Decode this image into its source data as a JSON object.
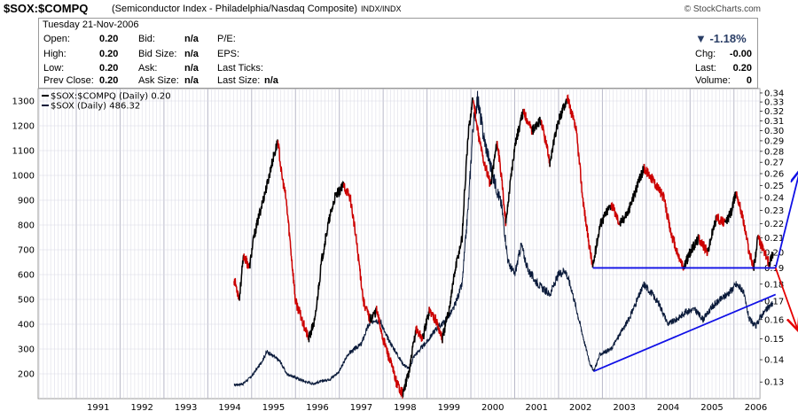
{
  "header": {
    "symbol": "$SOX:$COMPQ",
    "description": "(Semiconductor Index - Philadelphia/Nasdaq Composite)",
    "exchange": "INDX/INDX",
    "credit": "© StockCharts.com"
  },
  "quote": {
    "date": "Tuesday  21-Nov-2006",
    "open_label": "Open:",
    "open": "0.20",
    "high_label": "High:",
    "high": "0.20",
    "low_label": "Low:",
    "low": "0.20",
    "prev_close_label": "Prev Close:",
    "prev_close": "0.20",
    "bid_label": "Bid:",
    "bid": "n/a",
    "bid_size_label": "Bid Size:",
    "bid_size": "n/a",
    "ask_label": "Ask:",
    "ask": "n/a",
    "ask_size_label": "Ask Size:",
    "ask_size": "n/a",
    "pe_label": "P/E:",
    "eps_label": "EPS:",
    "last_ticks_label": "Last Ticks:",
    "last_size_label": "Last Size:",
    "last_size": "n/a",
    "change_pct": "▼ -1.18%",
    "chg_label": "Chg:",
    "chg": "-0.00",
    "last_label": "Last:",
    "last": "0.20",
    "volume_label": "Volume:",
    "volume": "0"
  },
  "colors": {
    "ratio_line": "#cc0000",
    "sox_line": "#0a1a3a",
    "ratio_legend": "#000000",
    "trendline": "#1010e6",
    "arrow_down": "#e60000",
    "grid": "#d7d7e3",
    "panel_bg": "#ffffff"
  },
  "chart_data": {
    "type": "line",
    "legend": [
      {
        "label": "$SOX:$COMPQ (Daily) 0.20",
        "color": "#000000"
      },
      {
        "label": "$SOX (Daily) 486.32",
        "color": "#0a1a3a"
      }
    ],
    "legend_position": "top-left",
    "grid": true,
    "x_tick_labels": [
      "1991",
      "1992",
      "1993",
      "1994",
      "1995",
      "1996",
      "1997",
      "1998",
      "1999",
      "2000",
      "2001",
      "2002",
      "2003",
      "2004",
      "2005",
      "2006"
    ],
    "left_axis": {
      "ticks": [
        200,
        300,
        400,
        500,
        600,
        700,
        800,
        900,
        1000,
        1100,
        1200,
        1300
      ],
      "range": [
        100,
        1350
      ]
    },
    "right_axis": {
      "ticks": [
        "0.13",
        "0.14",
        "0.15",
        "0.16",
        "0.17",
        "0.18",
        "0.19",
        "0.20",
        "0.21",
        "0.22",
        "0.23",
        "0.24",
        "0.25",
        "0.26",
        "0.27",
        "0.28",
        "0.29",
        "0.30",
        "0.31",
        "0.32",
        "0.33",
        "0.34"
      ],
      "scale": "log",
      "range": [
        0.123,
        0.345
      ]
    },
    "series": [
      {
        "name": "$SOX:$COMPQ (Daily) 0.20",
        "axis": "right",
        "color_segments": "black when rising, red when falling",
        "points": [
          [
            1994.6,
            0.183
          ],
          [
            1994.72,
            0.172
          ],
          [
            1994.82,
            0.198
          ],
          [
            1994.95,
            0.19
          ],
          [
            1995.05,
            0.21
          ],
          [
            1995.2,
            0.23
          ],
          [
            1995.35,
            0.25
          ],
          [
            1995.5,
            0.275
          ],
          [
            1995.6,
            0.29
          ],
          [
            1995.68,
            0.26
          ],
          [
            1995.78,
            0.24
          ],
          [
            1995.9,
            0.2
          ],
          [
            1996.0,
            0.17
          ],
          [
            1996.15,
            0.16
          ],
          [
            1996.3,
            0.15
          ],
          [
            1996.45,
            0.16
          ],
          [
            1996.6,
            0.195
          ],
          [
            1996.75,
            0.22
          ],
          [
            1996.9,
            0.24
          ],
          [
            1997.1,
            0.25
          ],
          [
            1997.25,
            0.24
          ],
          [
            1997.4,
            0.205
          ],
          [
            1997.55,
            0.17
          ],
          [
            1997.7,
            0.16
          ],
          [
            1997.85,
            0.165
          ],
          [
            1998.0,
            0.15
          ],
          [
            1998.15,
            0.14
          ],
          [
            1998.3,
            0.13
          ],
          [
            1998.45,
            0.125
          ],
          [
            1998.6,
            0.135
          ],
          [
            1998.75,
            0.155
          ],
          [
            1998.9,
            0.15
          ],
          [
            1999.05,
            0.165
          ],
          [
            1999.2,
            0.16
          ],
          [
            1999.35,
            0.15
          ],
          [
            1999.5,
            0.165
          ],
          [
            1999.65,
            0.19
          ],
          [
            1999.8,
            0.21
          ],
          [
            1999.95,
            0.3
          ],
          [
            2000.05,
            0.335
          ],
          [
            2000.15,
            0.3
          ],
          [
            2000.3,
            0.27
          ],
          [
            2000.45,
            0.25
          ],
          [
            2000.6,
            0.29
          ],
          [
            2000.8,
            0.22
          ],
          [
            2001.0,
            0.285
          ],
          [
            2001.2,
            0.32
          ],
          [
            2001.4,
            0.3
          ],
          [
            2001.6,
            0.31
          ],
          [
            2001.8,
            0.27
          ],
          [
            2002.0,
            0.31
          ],
          [
            2002.2,
            0.335
          ],
          [
            2002.4,
            0.3
          ],
          [
            2002.55,
            0.24
          ],
          [
            2002.65,
            0.215
          ],
          [
            2002.78,
            0.19
          ],
          [
            2002.95,
            0.22
          ],
          [
            2003.2,
            0.235
          ],
          [
            2003.4,
            0.22
          ],
          [
            2003.6,
            0.23
          ],
          [
            2003.8,
            0.25
          ],
          [
            2003.95,
            0.265
          ],
          [
            2004.15,
            0.255
          ],
          [
            2004.4,
            0.24
          ],
          [
            2004.55,
            0.215
          ],
          [
            2004.7,
            0.2
          ],
          [
            2004.85,
            0.19
          ],
          [
            2005.0,
            0.2
          ],
          [
            2005.2,
            0.21
          ],
          [
            2005.4,
            0.2
          ],
          [
            2005.6,
            0.225
          ],
          [
            2005.8,
            0.22
          ],
          [
            2005.95,
            0.23
          ],
          [
            2006.05,
            0.245
          ],
          [
            2006.2,
            0.225
          ],
          [
            2006.35,
            0.2
          ],
          [
            2006.45,
            0.19
          ],
          [
            2006.55,
            0.21
          ],
          [
            2006.7,
            0.2
          ],
          [
            2006.8,
            0.193
          ],
          [
            2006.89,
            0.2
          ]
        ]
      },
      {
        "name": "$SOX (Daily) 486.32",
        "axis": "left",
        "points": [
          [
            1994.6,
            155
          ],
          [
            1994.8,
            160
          ],
          [
            1995.0,
            190
          ],
          [
            1995.2,
            240
          ],
          [
            1995.35,
            290
          ],
          [
            1995.5,
            270
          ],
          [
            1995.65,
            250
          ],
          [
            1995.8,
            200
          ],
          [
            1996.0,
            185
          ],
          [
            1996.2,
            170
          ],
          [
            1996.4,
            160
          ],
          [
            1996.6,
            170
          ],
          [
            1996.8,
            180
          ],
          [
            1997.0,
            210
          ],
          [
            1997.2,
            280
          ],
          [
            1997.35,
            300
          ],
          [
            1997.5,
            320
          ],
          [
            1997.65,
            390
          ],
          [
            1997.8,
            420
          ],
          [
            1997.95,
            410
          ],
          [
            1998.05,
            360
          ],
          [
            1998.25,
            300
          ],
          [
            1998.45,
            240
          ],
          [
            1998.6,
            220
          ],
          [
            1998.7,
            270
          ],
          [
            1998.85,
            300
          ],
          [
            1999.0,
            330
          ],
          [
            1999.2,
            380
          ],
          [
            1999.4,
            410
          ],
          [
            1999.6,
            460
          ],
          [
            1999.8,
            560
          ],
          [
            1999.95,
            900
          ],
          [
            2000.05,
            1200
          ],
          [
            2000.15,
            1310
          ],
          [
            2000.3,
            1150
          ],
          [
            2000.5,
            1000
          ],
          [
            2000.7,
            880
          ],
          [
            2000.85,
            650
          ],
          [
            2001.0,
            600
          ],
          [
            2001.15,
            720
          ],
          [
            2001.3,
            620
          ],
          [
            2001.45,
            580
          ],
          [
            2001.6,
            550
          ],
          [
            2001.8,
            520
          ],
          [
            2002.0,
            600
          ],
          [
            2002.15,
            620
          ],
          [
            2002.3,
            540
          ],
          [
            2002.45,
            430
          ],
          [
            2002.6,
            320
          ],
          [
            2002.72,
            240
          ],
          [
            2002.8,
            210
          ],
          [
            2002.95,
            280
          ],
          [
            2003.2,
            300
          ],
          [
            2003.4,
            360
          ],
          [
            2003.6,
            420
          ],
          [
            2003.8,
            500
          ],
          [
            2003.95,
            560
          ],
          [
            2004.1,
            530
          ],
          [
            2004.3,
            480
          ],
          [
            2004.5,
            400
          ],
          [
            2004.7,
            420
          ],
          [
            2004.9,
            450
          ],
          [
            2005.1,
            460
          ],
          [
            2005.3,
            420
          ],
          [
            2005.5,
            470
          ],
          [
            2005.7,
            500
          ],
          [
            2005.9,
            530
          ],
          [
            2006.05,
            560
          ],
          [
            2006.2,
            540
          ],
          [
            2006.35,
            420
          ],
          [
            2006.5,
            390
          ],
          [
            2006.6,
            430
          ],
          [
            2006.7,
            450
          ],
          [
            2006.8,
            470
          ],
          [
            2006.89,
            486
          ]
        ]
      }
    ],
    "annotations": [
      {
        "type": "line",
        "axis": "right",
        "color": "#1010e6",
        "from": [
          2002.78,
          0.19
        ],
        "to": [
          2006.95,
          0.19
        ]
      },
      {
        "type": "line",
        "axis": "left",
        "color": "#1010e6",
        "from": [
          2002.8,
          210
        ],
        "to": [
          2006.95,
          520
        ]
      },
      {
        "type": "arrow",
        "axis": "right",
        "color": "#1010e6",
        "from": [
          2006.95,
          0.19
        ],
        "to": [
          2007.5,
          0.262
        ]
      },
      {
        "type": "arrow",
        "axis": "right",
        "color": "#e60000",
        "from": [
          2006.95,
          0.19
        ],
        "to": [
          2007.45,
          0.155
        ]
      }
    ]
  }
}
